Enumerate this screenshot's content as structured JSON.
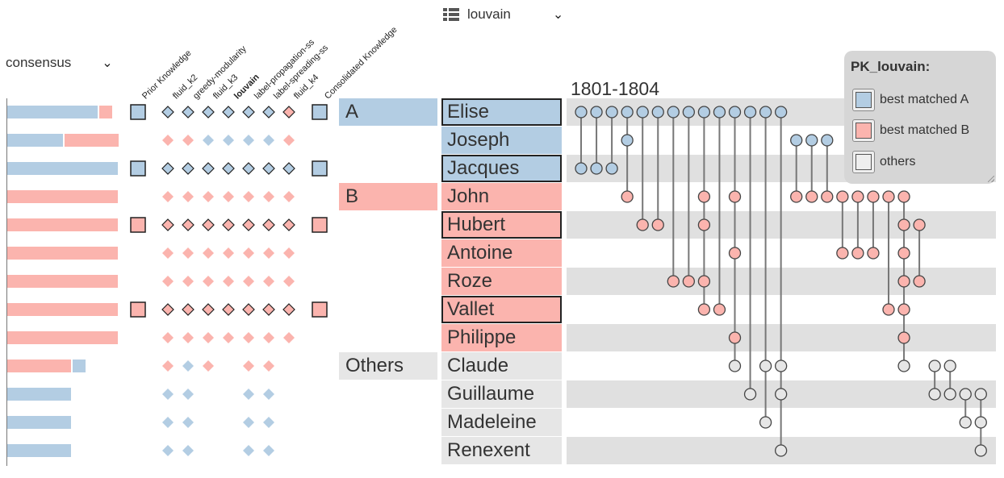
{
  "left_select": {
    "label": "consensus"
  },
  "top_select": {
    "label": "louvain",
    "icon": "table-list-icon"
  },
  "time_label": "1801-1804",
  "columns": [
    {
      "label": "Prior Knowledge",
      "bold": false
    },
    {
      "label": "fluid_k2",
      "bold": false
    },
    {
      "label": "greedy-modularity",
      "bold": false
    },
    {
      "label": "fluid_k3",
      "bold": false
    },
    {
      "label": "louvain",
      "bold": true
    },
    {
      "label": "label-propagation-ss",
      "bold": false
    },
    {
      "label": "label-spreading-ss",
      "bold": false
    },
    {
      "label": "fluid_k4",
      "bold": false
    },
    {
      "label": "Consolidated Knowledge",
      "bold": false
    }
  ],
  "colors": {
    "A": "#b3cde3",
    "B": "#fbb4ae",
    "O": "#e6e6e6"
  },
  "groups": [
    {
      "label": "A",
      "row": 0,
      "color": "A"
    },
    {
      "label": "B",
      "row": 3,
      "color": "B"
    },
    {
      "label": "Others",
      "row": 9,
      "color": "O"
    }
  ],
  "rows": [
    {
      "name": "Elise",
      "color": "A",
      "boxed": true,
      "prior": "A",
      "consolidated": "A",
      "diamonds": [
        "A",
        "A",
        "A",
        "A",
        "A",
        "A",
        "B"
      ],
      "outlined": true,
      "bar": [
        0.82,
        0.13
      ]
    },
    {
      "name": "Joseph",
      "color": "A",
      "boxed": false,
      "prior": null,
      "consolidated": null,
      "diamonds": [
        "B",
        "B",
        "A",
        "A",
        "A",
        "A",
        "B"
      ],
      "outlined": false,
      "bar": [
        0.5,
        0.5
      ]
    },
    {
      "name": "Jacques",
      "color": "A",
      "boxed": true,
      "prior": "A",
      "consolidated": "A",
      "diamonds": [
        "A",
        "A",
        "A",
        "A",
        "A",
        "A",
        "A"
      ],
      "outlined": true,
      "bar": [
        1.0,
        0
      ]
    },
    {
      "name": "John",
      "color": "B",
      "boxed": false,
      "prior": null,
      "consolidated": null,
      "diamonds": [
        "B",
        "B",
        "B",
        "B",
        "B",
        "B",
        "B"
      ],
      "outlined": false,
      "bar": [
        0,
        1.0
      ]
    },
    {
      "name": "Hubert",
      "color": "B",
      "boxed": true,
      "prior": "B",
      "consolidated": "B",
      "diamonds": [
        "B",
        "B",
        "B",
        "B",
        "B",
        "B",
        "B"
      ],
      "outlined": true,
      "bar": [
        0,
        1.0
      ]
    },
    {
      "name": "Antoine",
      "color": "B",
      "boxed": false,
      "prior": null,
      "consolidated": null,
      "diamonds": [
        "B",
        "B",
        "B",
        "B",
        "B",
        "B",
        "B"
      ],
      "outlined": false,
      "bar": [
        0,
        1.0
      ]
    },
    {
      "name": "Roze",
      "color": "B",
      "boxed": false,
      "prior": null,
      "consolidated": null,
      "diamonds": [
        "B",
        "B",
        "B",
        "B",
        "B",
        "B",
        "B"
      ],
      "outlined": false,
      "bar": [
        0,
        1.0
      ]
    },
    {
      "name": "Vallet",
      "color": "B",
      "boxed": true,
      "prior": "B",
      "consolidated": "B",
      "diamonds": [
        "B",
        "B",
        "B",
        "B",
        "B",
        "B",
        "B"
      ],
      "outlined": true,
      "bar": [
        0,
        1.0
      ]
    },
    {
      "name": "Philippe",
      "color": "B",
      "boxed": false,
      "prior": null,
      "consolidated": null,
      "diamonds": [
        "B",
        "B",
        "B",
        "B",
        "B",
        "B",
        "B"
      ],
      "outlined": false,
      "bar": [
        0,
        1.0
      ]
    },
    {
      "name": "Claude",
      "color": "O",
      "boxed": false,
      "prior": null,
      "consolidated": null,
      "diamonds": [
        "B",
        "A",
        "B",
        null,
        "B",
        "B",
        null
      ],
      "outlined": false,
      "bar": [
        -0.12,
        0.58
      ]
    },
    {
      "name": "Guillaume",
      "color": "O",
      "boxed": false,
      "prior": null,
      "consolidated": null,
      "diamonds": [
        "A",
        "A",
        null,
        null,
        "A",
        "A",
        null
      ],
      "outlined": false,
      "bar": [
        0.58,
        0
      ]
    },
    {
      "name": "Madeleine",
      "color": "O",
      "boxed": false,
      "prior": null,
      "consolidated": null,
      "diamonds": [
        "A",
        "A",
        null,
        null,
        "A",
        "A",
        null
      ],
      "outlined": false,
      "bar": [
        0.58,
        0
      ]
    },
    {
      "name": "Renexent",
      "color": "O",
      "boxed": false,
      "prior": null,
      "consolidated": null,
      "diamonds": [
        "A",
        "A",
        null,
        null,
        "A",
        "A",
        null
      ],
      "outlined": false,
      "bar": [
        0.58,
        0
      ]
    }
  ],
  "events": [
    {
      "rows": [
        0,
        2
      ]
    },
    {
      "rows": [
        0,
        2
      ]
    },
    {
      "rows": [
        0,
        2
      ]
    },
    {
      "rows": [
        0,
        1,
        3
      ]
    },
    {
      "rows": [
        0,
        4
      ]
    },
    {
      "rows": [
        0,
        4
      ]
    },
    {
      "rows": [
        0,
        6
      ]
    },
    {
      "rows": [
        0,
        6
      ]
    },
    {
      "rows": [
        0,
        3,
        4,
        6,
        7
      ]
    },
    {
      "rows": [
        0,
        7
      ]
    },
    {
      "rows": [
        0,
        3,
        5,
        8,
        9
      ]
    },
    {
      "rows": [
        0,
        10
      ]
    },
    {
      "rows": [
        0,
        9,
        11
      ]
    },
    {
      "rows": [
        0,
        9,
        10,
        12
      ]
    },
    {
      "rows": [
        1,
        3
      ]
    },
    {
      "rows": [
        1,
        3
      ]
    },
    {
      "rows": [
        1,
        3
      ]
    },
    {
      "rows": [
        3,
        5
      ]
    },
    {
      "rows": [
        3,
        5
      ]
    },
    {
      "rows": [
        3,
        5
      ]
    },
    {
      "rows": [
        3,
        7
      ]
    },
    {
      "rows": [
        3,
        4,
        5,
        6,
        7,
        8,
        9
      ]
    },
    {
      "rows": [
        4,
        6
      ]
    },
    {
      "rows": [
        9,
        10
      ]
    },
    {
      "rows": [
        9,
        10
      ]
    },
    {
      "rows": [
        10,
        11
      ]
    },
    {
      "rows": [
        10,
        11,
        12
      ]
    }
  ],
  "legend": {
    "title": "PK_louvain:",
    "items": [
      {
        "label": "best matched A",
        "color": "A"
      },
      {
        "label": "best matched B",
        "color": "B"
      },
      {
        "label": "others",
        "color": "O"
      }
    ]
  }
}
